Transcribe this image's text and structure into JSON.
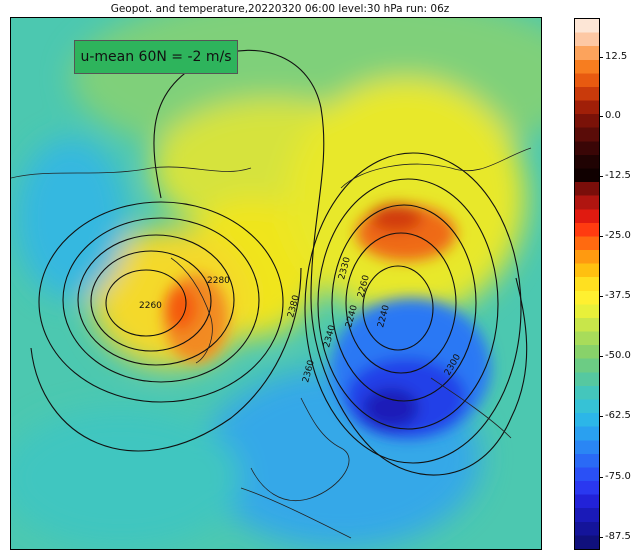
{
  "title": "Geopot. and temperature,20220320 06:00 level:30 hPa run: 06z",
  "annotation": "u-mean 60N = -2 m/s",
  "annotation_color": "#2eb45c",
  "colorbar": {
    "labels": [
      "12.5",
      "0.0",
      "-12.5",
      "-25.0",
      "-37.5",
      "-50.0",
      "-62.5",
      "-75.0",
      "-87.5"
    ],
    "colors": [
      "#fde6d6",
      "#fdc8a4",
      "#fca35c",
      "#f77d1f",
      "#e85a10",
      "#c93a0b",
      "#a01f08",
      "#7a1208",
      "#5a0c08",
      "#3a0606",
      "#200303",
      "#100000",
      "#7a0e0a",
      "#b01510",
      "#e01a10",
      "#ff3b10",
      "#ff6a10",
      "#ff9a10",
      "#ffc010",
      "#ffe020",
      "#fff030",
      "#e8f03a",
      "#c8e64a",
      "#a8dc5a",
      "#88d26a",
      "#6ccc84",
      "#56c8a0",
      "#44c6bc",
      "#36c2d6",
      "#2cb6e8",
      "#2aa0f0",
      "#2a86f4",
      "#2a6af6",
      "#2a50f6",
      "#2a38f0",
      "#2222d8",
      "#1a1ab8",
      "#14149a",
      "#10107c"
    ]
  },
  "contour_labels": [
    "2260",
    "2280",
    "2380",
    "2360",
    "2340",
    "2330",
    "2260",
    "2240",
    "2240",
    "2300"
  ]
}
